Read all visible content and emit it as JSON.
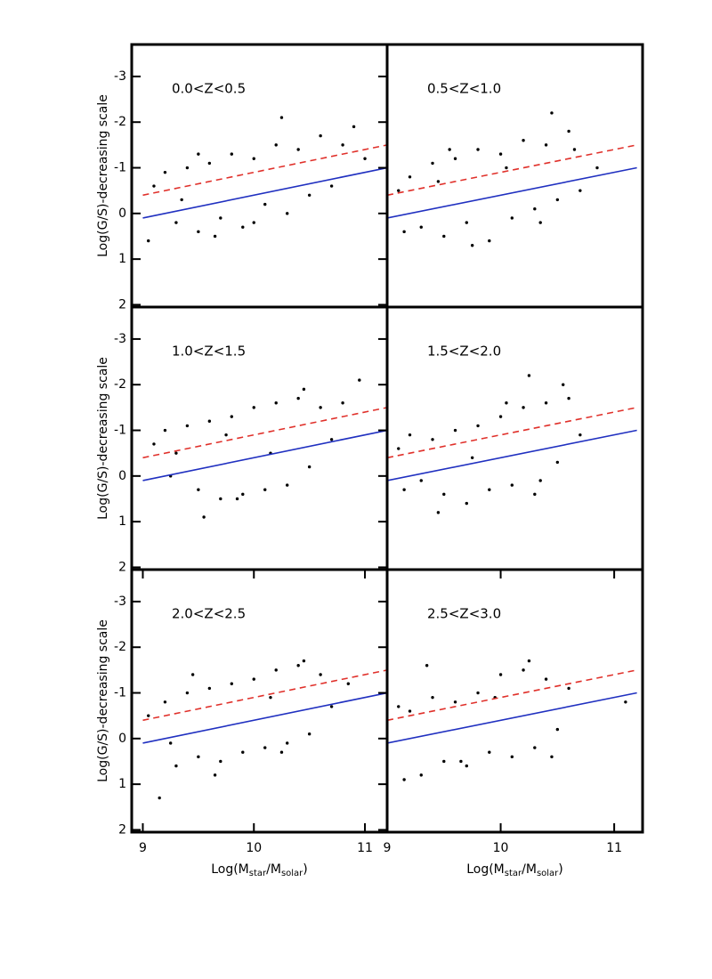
{
  "chart_data": [
    {
      "type": "scatter",
      "title": "0.0<Z<0.5",
      "ylabel": "Log(G/S)-decreasing scale",
      "xlim": [
        8.9,
        11.2
      ],
      "ylim": [
        2.05,
        -3.7
      ],
      "yticks": [
        -3,
        -2,
        -1,
        0,
        1,
        2
      ],
      "series": [
        {
          "color": "#000000",
          "x": [
            9.1,
            9.2,
            9.3,
            9.4,
            9.5,
            9.6,
            9.7,
            9.8,
            9.9,
            10.0,
            10.1,
            10.2,
            10.3,
            10.4,
            10.5,
            10.6,
            10.7,
            10.8,
            9.05,
            9.35,
            9.65,
            10.25,
            10.9,
            9.5,
            10.0,
            11.0
          ],
          "values": [
            -0.6,
            -0.9,
            0.2,
            -1.0,
            0.4,
            -1.1,
            0.1,
            -1.3,
            0.3,
            -1.2,
            -0.2,
            -1.5,
            0.0,
            -1.4,
            -0.4,
            -1.7,
            -0.6,
            -1.5,
            0.6,
            -0.3,
            0.5,
            -2.1,
            -1.9,
            -1.3,
            0.2,
            -1.2
          ]
        }
      ],
      "lines": [
        {
          "color": "#e0302a",
          "style": "dashed",
          "x": [
            9,
            11.2
          ],
          "values": [
            -0.4,
            -1.5
          ]
        },
        {
          "color": "#2030c0",
          "style": "solid",
          "x": [
            9,
            11.2
          ],
          "values": [
            0.1,
            -1.0
          ]
        }
      ]
    },
    {
      "type": "scatter",
      "title": "0.5<Z<1.0",
      "xlim": [
        9.0,
        11.25
      ],
      "ylim": [
        2.05,
        -3.7
      ],
      "series": [
        {
          "color": "#000000",
          "x": [
            9.1,
            9.2,
            9.3,
            9.4,
            9.5,
            9.6,
            9.7,
            9.8,
            9.9,
            10.0,
            10.1,
            10.2,
            10.3,
            10.4,
            10.5,
            10.6,
            10.7,
            9.15,
            9.45,
            9.75,
            10.05,
            10.35,
            10.65,
            10.45,
            9.55,
            10.85
          ],
          "values": [
            -0.5,
            -0.8,
            0.3,
            -1.1,
            0.5,
            -1.2,
            0.2,
            -1.4,
            0.6,
            -1.3,
            0.1,
            -1.6,
            -0.1,
            -1.5,
            -0.3,
            -1.8,
            -0.5,
            0.4,
            -0.7,
            0.7,
            -1.0,
            0.2,
            -1.4,
            -2.2,
            -1.4,
            -1.0
          ]
        }
      ],
      "lines": [
        {
          "color": "#e0302a",
          "style": "dashed",
          "x": [
            9,
            11.2
          ],
          "values": [
            -0.4,
            -1.5
          ]
        },
        {
          "color": "#2030c0",
          "style": "solid",
          "x": [
            9,
            11.2
          ],
          "values": [
            0.1,
            -1.0
          ]
        }
      ]
    },
    {
      "type": "scatter",
      "title": "1.0<Z<1.5",
      "ylabel": "Log(G/S)-decreasing scale",
      "xlim": [
        8.9,
        11.2
      ],
      "ylim": [
        2.05,
        -3.7
      ],
      "yticks": [
        -3,
        -2,
        -1,
        0,
        1,
        2
      ],
      "series": [
        {
          "color": "#000000",
          "x": [
            9.1,
            9.2,
            9.3,
            9.4,
            9.5,
            9.6,
            9.7,
            9.8,
            9.9,
            10.0,
            10.1,
            10.2,
            10.3,
            10.4,
            10.5,
            10.6,
            10.7,
            10.8,
            9.55,
            9.85,
            10.15,
            10.45,
            10.95,
            9.25,
            9.75
          ],
          "values": [
            -0.7,
            -1.0,
            -0.5,
            -1.1,
            0.3,
            -1.2,
            0.5,
            -1.3,
            0.4,
            -1.5,
            0.3,
            -1.6,
            0.2,
            -1.7,
            -0.2,
            -1.5,
            -0.8,
            -1.6,
            0.9,
            0.5,
            -0.5,
            -1.9,
            -2.1,
            0.0,
            -0.9
          ]
        }
      ],
      "lines": [
        {
          "color": "#e0302a",
          "style": "dashed",
          "x": [
            9,
            11.2
          ],
          "values": [
            -0.4,
            -1.5
          ]
        },
        {
          "color": "#2030c0",
          "style": "solid",
          "x": [
            9,
            11.2
          ],
          "values": [
            0.1,
            -1.0
          ]
        }
      ]
    },
    {
      "type": "scatter",
      "title": "1.5<Z<2.0",
      "xlim": [
        9.0,
        11.25
      ],
      "ylim": [
        2.05,
        -3.7
      ],
      "series": [
        {
          "color": "#000000",
          "x": [
            9.1,
            9.2,
            9.3,
            9.4,
            9.5,
            9.6,
            9.7,
            9.8,
            9.9,
            10.0,
            10.1,
            10.2,
            10.3,
            10.4,
            10.5,
            10.6,
            10.7,
            9.45,
            9.75,
            10.05,
            10.35,
            10.55,
            9.15,
            10.25
          ],
          "values": [
            -0.6,
            -0.9,
            0.1,
            -0.8,
            0.4,
            -1.0,
            0.6,
            -1.1,
            0.3,
            -1.3,
            0.2,
            -1.5,
            0.4,
            -1.6,
            -0.3,
            -1.7,
            -0.9,
            0.8,
            -0.4,
            -1.6,
            0.1,
            -2.0,
            0.3,
            -2.2
          ]
        }
      ],
      "lines": [
        {
          "color": "#e0302a",
          "style": "dashed",
          "x": [
            9,
            11.2
          ],
          "values": [
            -0.4,
            -1.5
          ]
        },
        {
          "color": "#2030c0",
          "style": "solid",
          "x": [
            9,
            11.2
          ],
          "values": [
            0.1,
            -1.0
          ]
        }
      ]
    },
    {
      "type": "scatter",
      "title": "2.0<Z<2.5",
      "ylabel": "Log(G/S)-decreasing scale",
      "xlabel": [
        "Log(M",
        "star",
        "/M",
        "solar",
        ")"
      ],
      "xlim": [
        8.9,
        11.2
      ],
      "ylim": [
        2.05,
        -3.7
      ],
      "yticks": [
        -3,
        -2,
        -1,
        0,
        1,
        2
      ],
      "xticks": [
        9,
        10,
        11
      ],
      "series": [
        {
          "color": "#000000",
          "x": [
            9.05,
            9.2,
            9.3,
            9.4,
            9.5,
            9.6,
            9.7,
            9.8,
            9.9,
            10.0,
            10.1,
            10.2,
            10.3,
            10.4,
            10.5,
            10.6,
            10.7,
            9.15,
            9.45,
            9.65,
            10.15,
            10.45,
            10.85,
            9.25,
            10.25
          ],
          "values": [
            -0.5,
            -0.8,
            0.6,
            -1.0,
            0.4,
            -1.1,
            0.5,
            -1.2,
            0.3,
            -1.3,
            0.2,
            -1.5,
            0.1,
            -1.6,
            -0.1,
            -1.4,
            -0.7,
            1.3,
            -1.4,
            0.8,
            -0.9,
            -1.7,
            -1.2,
            0.1,
            0.3
          ]
        }
      ],
      "lines": [
        {
          "color": "#e0302a",
          "style": "dashed",
          "x": [
            9,
            11.2
          ],
          "values": [
            -0.4,
            -1.5
          ]
        },
        {
          "color": "#2030c0",
          "style": "solid",
          "x": [
            9,
            11.2
          ],
          "values": [
            0.1,
            -1.0
          ]
        }
      ]
    },
    {
      "type": "scatter",
      "title": "2.5<Z<3.0",
      "xlabel": [
        "Log(M",
        "star",
        "/M",
        "solar",
        ")"
      ],
      "xlim": [
        9.0,
        11.25
      ],
      "ylim": [
        2.05,
        -3.7
      ],
      "xticks": [
        9,
        10,
        11
      ],
      "series": [
        {
          "color": "#000000",
          "x": [
            9.1,
            9.2,
            9.3,
            9.4,
            9.5,
            9.6,
            9.7,
            9.8,
            9.9,
            10.0,
            10.1,
            10.2,
            10.3,
            10.4,
            10.5,
            10.6,
            9.35,
            9.65,
            9.95,
            10.25,
            10.45,
            11.1,
            9.15
          ],
          "values": [
            -0.7,
            -0.6,
            0.8,
            -0.9,
            0.5,
            -0.8,
            0.6,
            -1.0,
            0.3,
            -1.4,
            0.4,
            -1.5,
            0.2,
            -1.3,
            -0.2,
            -1.1,
            -1.6,
            0.5,
            -0.9,
            -1.7,
            0.4,
            -0.8,
            0.9
          ]
        }
      ],
      "lines": [
        {
          "color": "#e0302a",
          "style": "dashed",
          "x": [
            9,
            11.2
          ],
          "values": [
            -0.4,
            -1.5
          ]
        },
        {
          "color": "#2030c0",
          "style": "solid",
          "x": [
            9,
            11.2
          ],
          "values": [
            0.1,
            -1.0
          ]
        }
      ]
    }
  ]
}
